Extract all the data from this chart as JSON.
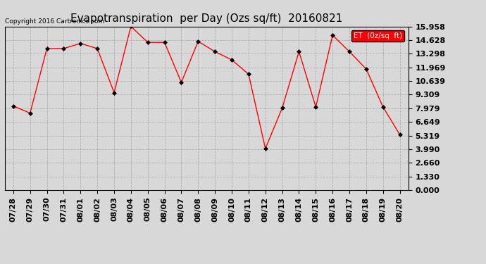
{
  "title": "Evapotranspiration  per Day (Ozs sq/ft)  20160821",
  "copyright_text": "Copyright 2016 Cartronics.com",
  "legend_label": "ET  (0z/sq  ft)",
  "x_labels": [
    "07/28",
    "07/29",
    "07/30",
    "07/31",
    "08/01",
    "08/02",
    "08/03",
    "08/04",
    "08/05",
    "08/06",
    "08/07",
    "08/08",
    "08/09",
    "08/10",
    "08/11",
    "08/12",
    "08/13",
    "08/14",
    "08/15",
    "08/16",
    "08/17",
    "08/18",
    "08/19",
    "08/20"
  ],
  "y_values": [
    8.2,
    7.5,
    13.8,
    13.8,
    14.3,
    13.8,
    9.5,
    15.96,
    14.4,
    14.4,
    10.5,
    14.5,
    13.5,
    12.7,
    11.3,
    4.05,
    8.0,
    13.5,
    8.1,
    15.1,
    13.5,
    11.8,
    8.1,
    5.4
  ],
  "ytick_values": [
    0.0,
    1.33,
    2.66,
    3.99,
    5.319,
    6.649,
    7.979,
    9.309,
    10.639,
    11.969,
    13.298,
    14.628,
    15.958
  ],
  "line_color": "red",
  "marker_color": "black",
  "background_color": "#d8d8d8",
  "grid_color": "#aaaaaa",
  "title_fontsize": 11,
  "tick_fontsize": 8,
  "legend_bg": "red",
  "legend_fg": "white",
  "ymax": 15.958,
  "ymin": 0.0
}
